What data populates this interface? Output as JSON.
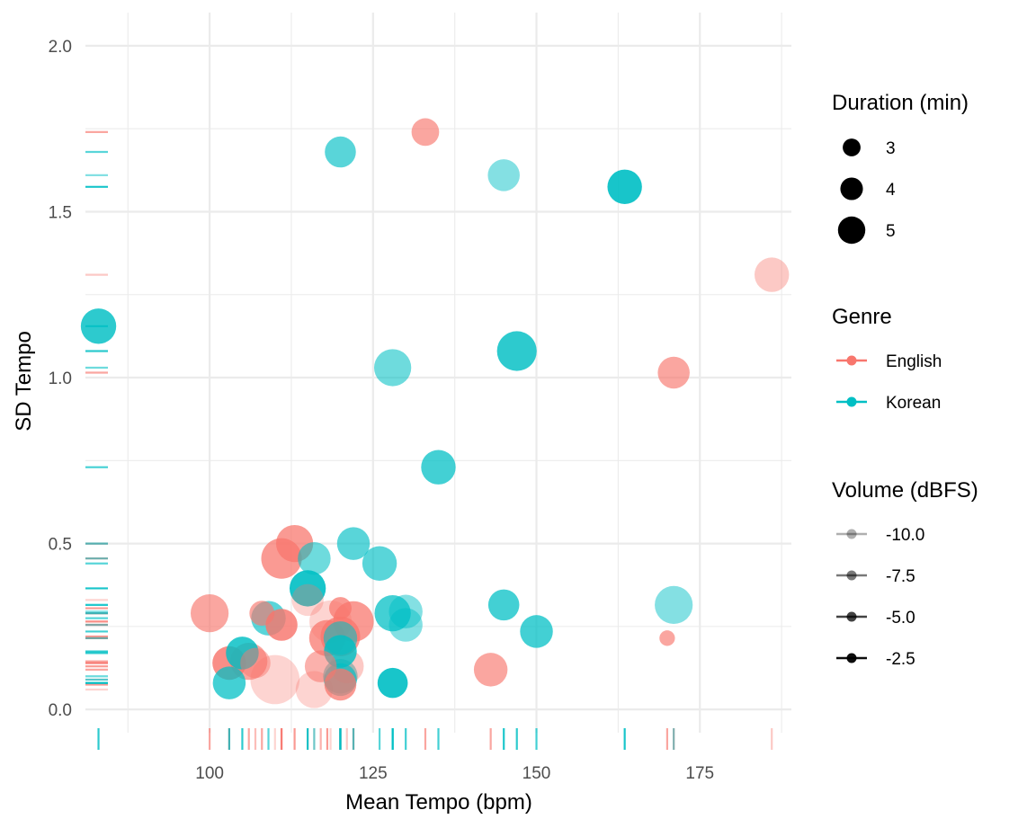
{
  "chart_data": {
    "type": "scatter",
    "xlabel": "Mean Tempo (bpm)",
    "ylabel": "SD Tempo",
    "xlim": [
      81,
      189
    ],
    "ylim": [
      -0.07,
      2.1
    ],
    "x_ticks": [
      100,
      125,
      150,
      175
    ],
    "x_tick_labels": [
      "100",
      "125",
      "150",
      "175"
    ],
    "y_ticks": [
      0.0,
      0.5,
      1.0,
      1.5,
      2.0
    ],
    "y_tick_labels": [
      "0.0",
      "0.5",
      "1.0",
      "1.5",
      "2.0"
    ],
    "grid": true,
    "rug": true,
    "legend_position": "right",
    "colors": {
      "English": "#F8766D",
      "Korean": "#00BFC4",
      "grid": "#ebebeb",
      "legend_key": "#000000"
    },
    "legend": {
      "size": {
        "title": "Duration (min)",
        "entries": [
          {
            "label": "3",
            "value": 3
          },
          {
            "label": "4",
            "value": 4
          },
          {
            "label": "5",
            "value": 5
          }
        ]
      },
      "color": {
        "title": "Genre",
        "entries": [
          {
            "label": "English",
            "color": "#F8766D"
          },
          {
            "label": "Korean",
            "color": "#00BFC4"
          }
        ]
      },
      "alpha": {
        "title": "Volume (dBFS)",
        "entries": [
          {
            "label": "-10.0",
            "value": -10.0
          },
          {
            "label": "-7.5",
            "value": -7.5
          },
          {
            "label": "-5.0",
            "value": -5.0
          },
          {
            "label": "-2.5",
            "value": -2.5
          }
        ]
      }
    },
    "series": [
      {
        "name": "English",
        "points": [
          {
            "x": 133,
            "y": 1.74,
            "duration": 3.2,
            "volume": -6.0
          },
          {
            "x": 186,
            "y": 1.31,
            "duration": 4.0,
            "volume": -9.0
          },
          {
            "x": 171,
            "y": 1.015,
            "duration": 3.7,
            "volume": -6.0
          },
          {
            "x": 113,
            "y": 0.5,
            "duration": 4.3,
            "volume": -5.0
          },
          {
            "x": 111,
            "y": 0.455,
            "duration": 4.7,
            "volume": -5.0
          },
          {
            "x": 100,
            "y": 0.29,
            "duration": 4.4,
            "volume": -6.0
          },
          {
            "x": 108,
            "y": 0.29,
            "duration": 2.9,
            "volume": -6.0
          },
          {
            "x": 111,
            "y": 0.255,
            "duration": 3.7,
            "volume": -4.0
          },
          {
            "x": 115,
            "y": 0.33,
            "duration": 3.7,
            "volume": -10.0
          },
          {
            "x": 120,
            "y": 0.305,
            "duration": 2.6,
            "volume": -5.0
          },
          {
            "x": 118.5,
            "y": 0.265,
            "duration": 4.9,
            "volume": -10.0
          },
          {
            "x": 122,
            "y": 0.265,
            "duration": 4.7,
            "volume": -5.0
          },
          {
            "x": 118,
            "y": 0.215,
            "duration": 4.2,
            "volume": -5.0
          },
          {
            "x": 120,
            "y": 0.22,
            "duration": 4.6,
            "volume": -5.0
          },
          {
            "x": 103,
            "y": 0.14,
            "duration": 3.9,
            "volume": -4.0
          },
          {
            "x": 106,
            "y": 0.145,
            "duration": 4.3,
            "volume": -6.0
          },
          {
            "x": 107,
            "y": 0.14,
            "duration": 3.5,
            "volume": -8.0
          },
          {
            "x": 117,
            "y": 0.13,
            "duration": 3.7,
            "volume": -7.0
          },
          {
            "x": 121,
            "y": 0.13,
            "duration": 3.9,
            "volume": -9.0
          },
          {
            "x": 110,
            "y": 0.09,
            "duration": 5.7,
            "volume": -10.0
          },
          {
            "x": 116,
            "y": 0.06,
            "duration": 4.3,
            "volume": -10.0
          },
          {
            "x": 120,
            "y": 0.075,
            "duration": 3.7,
            "volume": -5.0
          },
          {
            "x": 143,
            "y": 0.12,
            "duration": 3.9,
            "volume": -6.0
          },
          {
            "x": 170,
            "y": 0.215,
            "duration": 1.8,
            "volume": -6.0
          }
        ]
      },
      {
        "name": "Korean",
        "points": [
          {
            "x": 120,
            "y": 1.68,
            "duration": 3.6,
            "volume": -6.0
          },
          {
            "x": 145,
            "y": 1.61,
            "duration": 3.7,
            "volume": -8.0
          },
          {
            "x": 163.5,
            "y": 1.575,
            "duration": 4.0,
            "volume": -3.0
          },
          {
            "x": 83,
            "y": 1.155,
            "duration": 4.1,
            "volume": -4.0
          },
          {
            "x": 147,
            "y": 1.08,
            "duration": 4.6,
            "volume": -4.0
          },
          {
            "x": 128,
            "y": 1.03,
            "duration": 4.3,
            "volume": -7.0
          },
          {
            "x": 135,
            "y": 0.73,
            "duration": 4.0,
            "volume": -5.0
          },
          {
            "x": 122,
            "y": 0.5,
            "duration": 3.8,
            "volume": -6.0
          },
          {
            "x": 116,
            "y": 0.455,
            "duration": 3.8,
            "volume": -7.0
          },
          {
            "x": 126,
            "y": 0.44,
            "duration": 4.0,
            "volume": -6.0
          },
          {
            "x": 115,
            "y": 0.365,
            "duration": 4.2,
            "volume": -3.0
          },
          {
            "x": 109,
            "y": 0.275,
            "duration": 4.0,
            "volume": -6.0
          },
          {
            "x": 128,
            "y": 0.29,
            "duration": 4.2,
            "volume": -5.0
          },
          {
            "x": 130,
            "y": 0.295,
            "duration": 3.9,
            "volume": -8.0
          },
          {
            "x": 130,
            "y": 0.255,
            "duration": 3.9,
            "volume": -8.0
          },
          {
            "x": 145,
            "y": 0.315,
            "duration": 3.6,
            "volume": -5.0
          },
          {
            "x": 171,
            "y": 0.315,
            "duration": 4.4,
            "volume": -8.0
          },
          {
            "x": 150,
            "y": 0.235,
            "duration": 3.8,
            "volume": -5.0
          },
          {
            "x": 120,
            "y": 0.215,
            "duration": 3.9,
            "volume": -7.0
          },
          {
            "x": 120,
            "y": 0.175,
            "duration": 3.8,
            "volume": -4.0
          },
          {
            "x": 105,
            "y": 0.17,
            "duration": 3.8,
            "volume": -4.0
          },
          {
            "x": 120,
            "y": 0.1,
            "duration": 4.0,
            "volume": -7.0
          },
          {
            "x": 120,
            "y": 0.09,
            "duration": 3.8,
            "volume": -6.0
          },
          {
            "x": 103,
            "y": 0.08,
            "duration": 3.8,
            "volume": -5.0
          },
          {
            "x": 128,
            "y": 0.08,
            "duration": 3.5,
            "volume": -3.0
          }
        ]
      }
    ]
  }
}
